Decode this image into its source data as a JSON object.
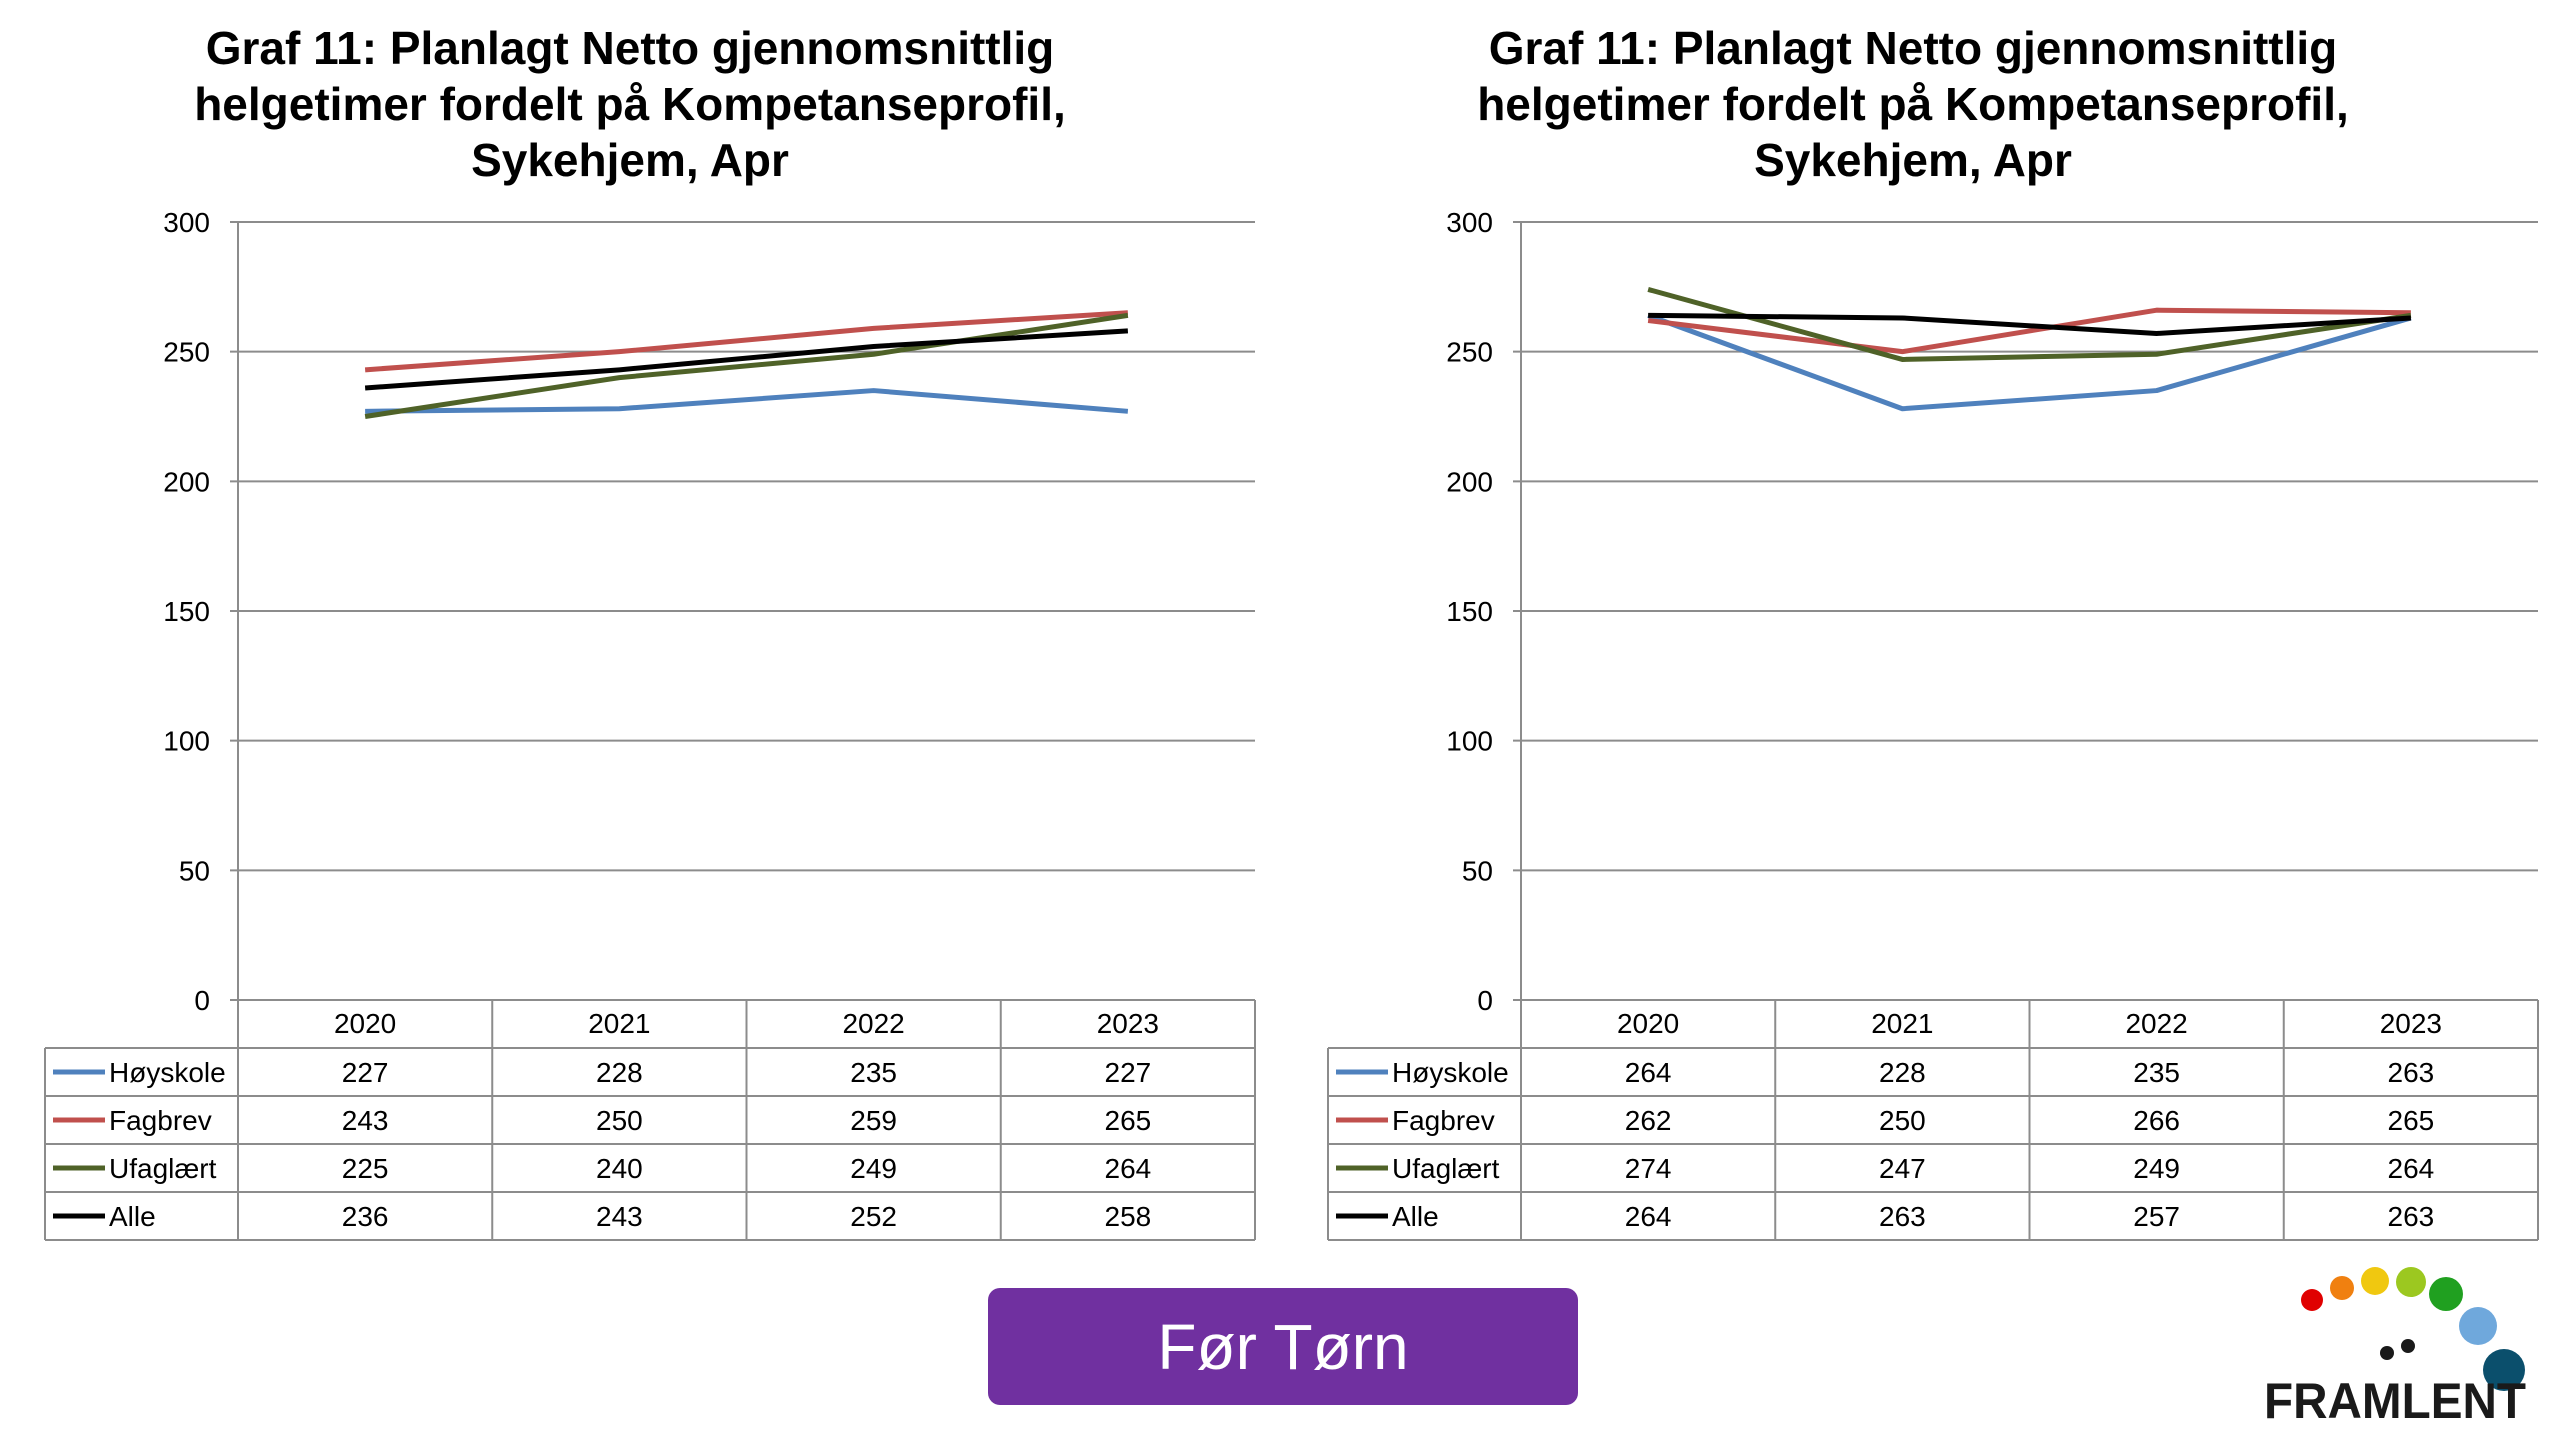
{
  "charts": [
    {
      "title": "Graf 11: Planlagt Netto gjennomsnittlig helgetimer fordelt på Kompetanseprofil, Sykehjem, Apr",
      "chart_data": {
        "type": "line",
        "categories": [
          "2020",
          "2021",
          "2022",
          "2023"
        ],
        "ylim": [
          0,
          300
        ],
        "yticks": [
          "0",
          "50",
          "100",
          "150",
          "200",
          "250",
          "300"
        ],
        "grid": true,
        "legend": "data-table",
        "series": [
          {
            "name": "Høyskole",
            "color": "#4f81bd",
            "values": [
              227,
              228,
              235,
              227
            ]
          },
          {
            "name": "Fagbrev",
            "color": "#c0504d",
            "values": [
              243,
              250,
              259,
              265
            ]
          },
          {
            "name": "Ufaglært",
            "color": "#4f6228",
            "values": [
              225,
              240,
              249,
              264
            ]
          },
          {
            "name": "Alle",
            "color": "#000000",
            "values": [
              236,
              243,
              252,
              258
            ]
          }
        ]
      }
    },
    {
      "title": "Graf 11: Planlagt Netto gjennomsnittlig helgetimer fordelt på Kompetanseprofil, Sykehjem, Apr",
      "chart_data": {
        "type": "line",
        "categories": [
          "2020",
          "2021",
          "2022",
          "2023"
        ],
        "ylim": [
          0,
          300
        ],
        "yticks": [
          "0",
          "50",
          "100",
          "150",
          "200",
          "250",
          "300"
        ],
        "grid": true,
        "legend": "data-table",
        "series": [
          {
            "name": "Høyskole",
            "color": "#4f81bd",
            "values": [
              264,
              228,
              235,
              263
            ]
          },
          {
            "name": "Fagbrev",
            "color": "#c0504d",
            "values": [
              262,
              250,
              266,
              265
            ]
          },
          {
            "name": "Ufaglært",
            "color": "#4f6228",
            "values": [
              274,
              247,
              249,
              264
            ]
          },
          {
            "name": "Alle",
            "color": "#000000",
            "values": [
              264,
              263,
              257,
              263
            ]
          }
        ]
      }
    }
  ],
  "banner": {
    "label": "Før Tørn",
    "color": "#7030a0"
  },
  "logo": {
    "text": "FRAMLENT",
    "dot_colors": [
      "#e00000",
      "#f08010",
      "#f0c810",
      "#9cc820",
      "#20a020",
      "#6fa8dc",
      "#0b4f6c"
    ]
  }
}
